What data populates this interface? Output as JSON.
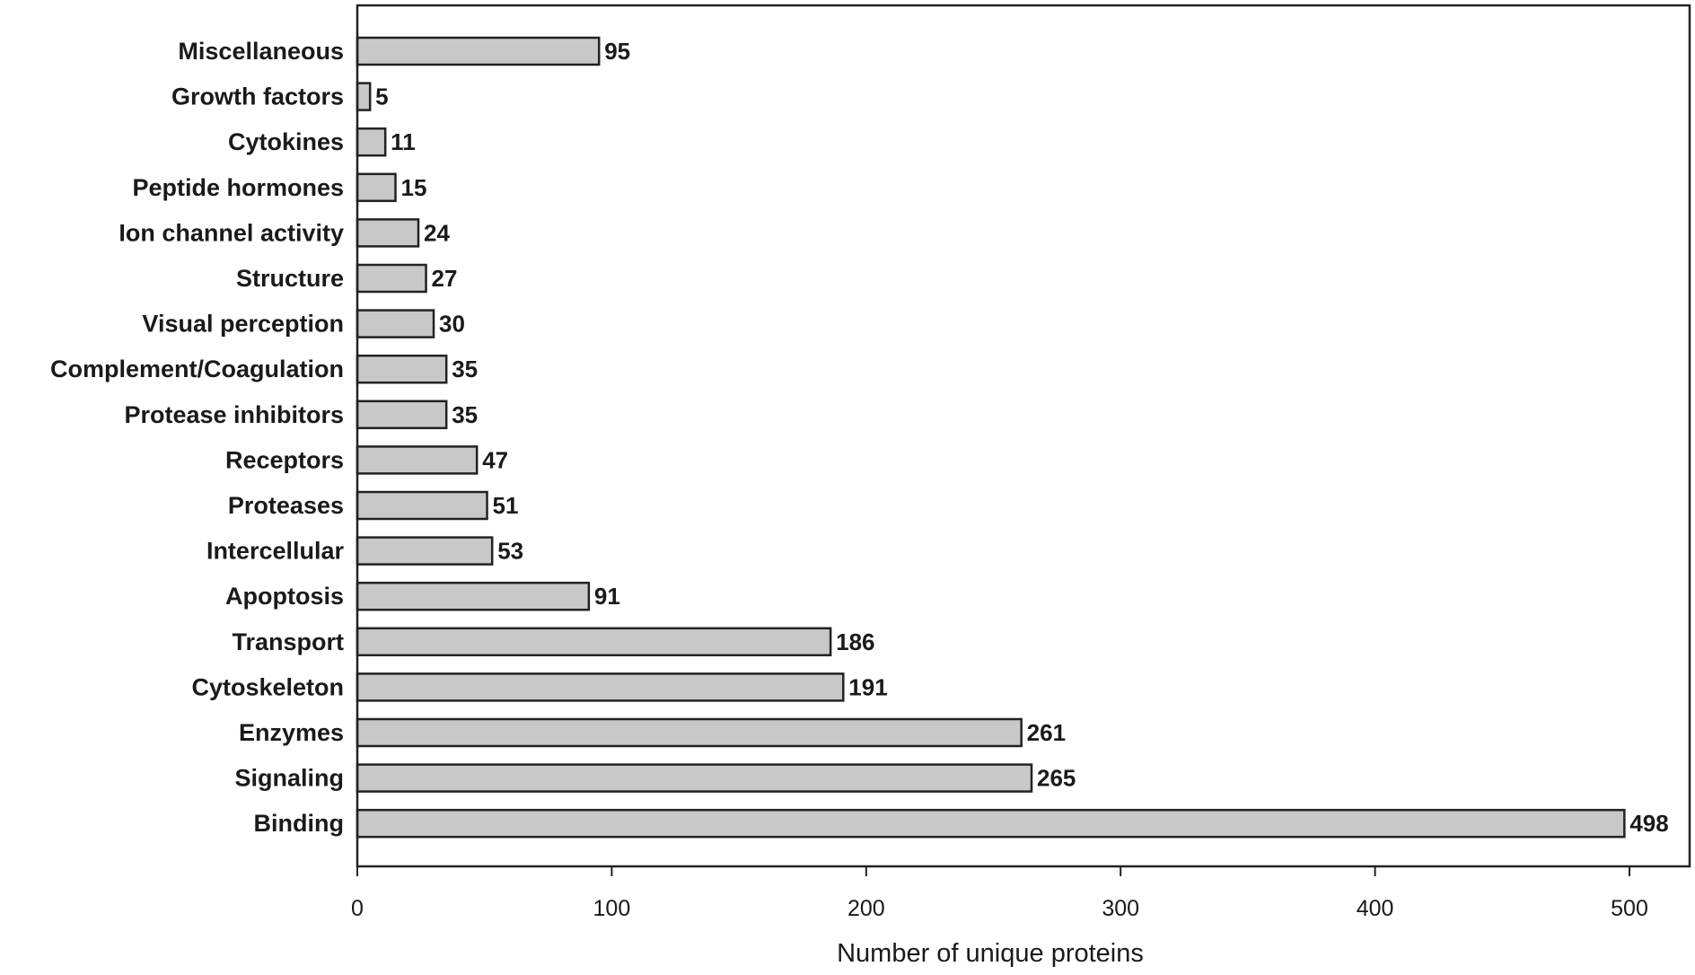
{
  "chart_data": {
    "type": "bar",
    "orientation": "horizontal",
    "categories": [
      "Miscellaneous",
      "Growth factors",
      "Cytokines",
      "Peptide hormones",
      "Ion channel activity",
      "Structure",
      "Visual perception",
      "Complement/Coagulation",
      "Protease inhibitors",
      "Receptors",
      "Proteases",
      "Intercellular",
      "Apoptosis",
      "Transport",
      "Cytoskeleton",
      "Enzymes",
      "Signaling",
      "Binding"
    ],
    "values": [
      95,
      5,
      11,
      15,
      24,
      27,
      30,
      35,
      35,
      47,
      51,
      53,
      91,
      186,
      191,
      261,
      265,
      498
    ],
    "value_labels": [
      "95",
      "5",
      "11",
      "15",
      "24",
      "27",
      "30",
      "35",
      "35",
      "47",
      "51",
      "53",
      "91",
      "186",
      "191",
      "261",
      "265",
      "498"
    ],
    "title": "",
    "xlabel": "Number of unique proteins",
    "ylabel": "",
    "xlim": [
      0,
      520
    ],
    "xticks": [
      0,
      100,
      200,
      300,
      400,
      500
    ],
    "xtick_labels": [
      "0",
      "100",
      "200",
      "300",
      "400",
      "500"
    ],
    "grid": false,
    "legend": "none",
    "bar_color": "#c8c8c8",
    "bar_edge_color": "#222222"
  }
}
